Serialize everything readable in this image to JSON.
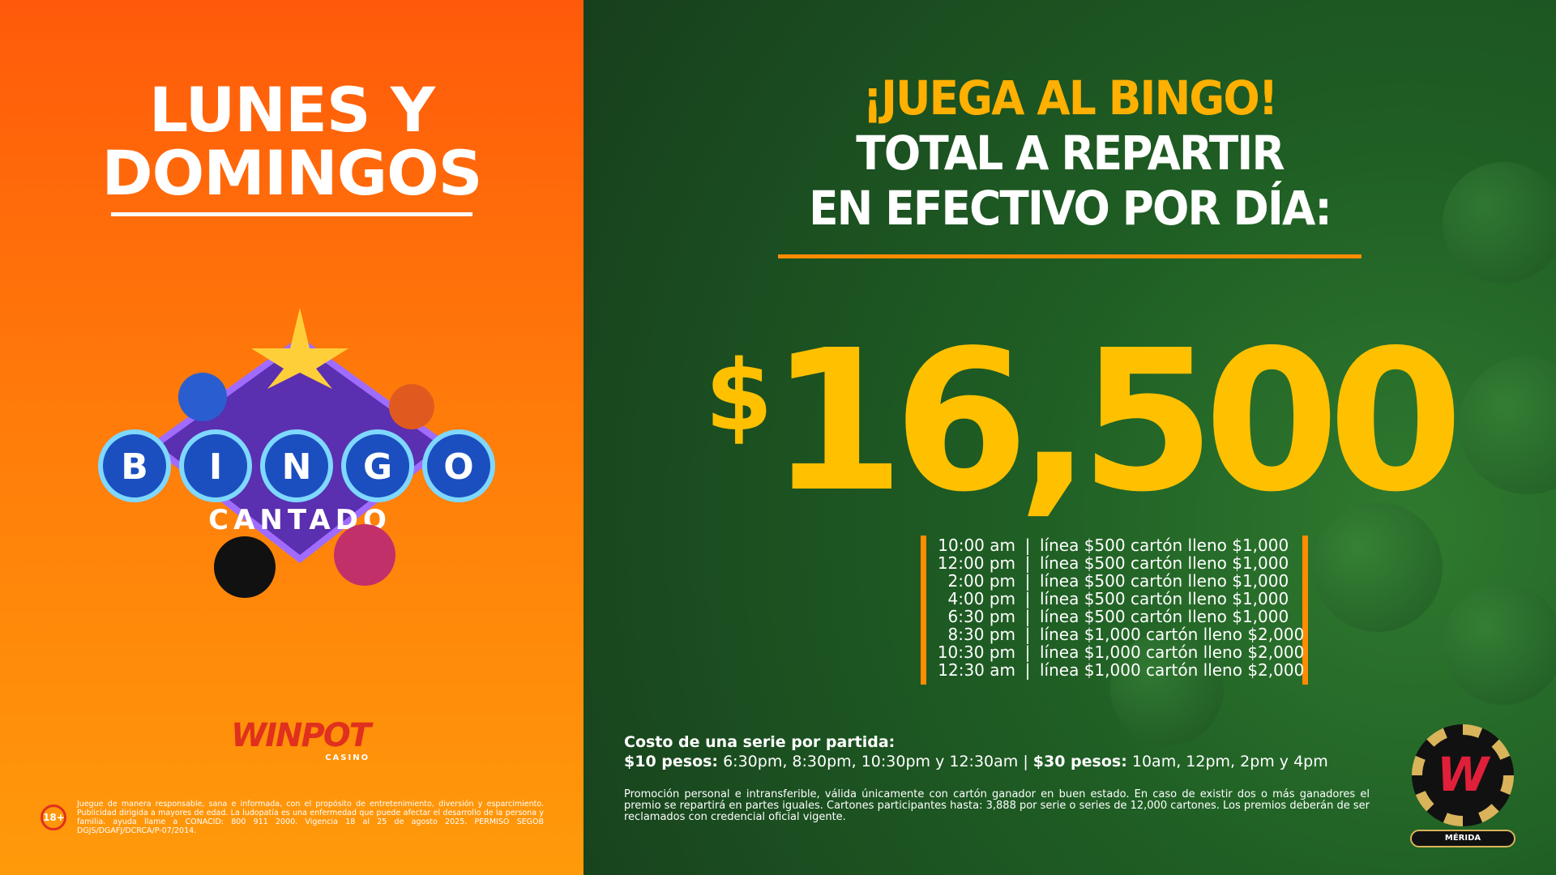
{
  "left": {
    "headline": [
      "LUNES Y",
      "DOMINGOS"
    ],
    "logo_text": {
      "letters": [
        "B",
        "I",
        "N",
        "G",
        "O"
      ],
      "subtitle": "CANTADO"
    },
    "brand": {
      "name": "WINPOT",
      "sub": "CASINO"
    },
    "age_badge": "18+",
    "disclaimer": "Juegue de manera responsable, sana e informada, con el propósito de entretenimiento, diversión y esparcimiento. Publicidad dirigida a mayores de edad. La ludopatía es una enfermedad que puede afectar el desarrollo de la persona y familia. ayuda llame a CONACID: 800 911 2000. Vigencia 18 al 25 de agosto 2025. PERMISO SEGOB DGJS/DGAFJ/DCRCA/P-07/2014."
  },
  "right": {
    "title": "¡JUEGA AL BINGO!",
    "subtitle": [
      "TOTAL A REPARTIR",
      "EN EFECTIVO POR DÍA:"
    ],
    "amount": {
      "currency": "$",
      "value": "16,500"
    },
    "schedule": [
      {
        "time": "10:00 am",
        "prize": "línea $500 cartón lleno $1,000"
      },
      {
        "time": "12:00 pm",
        "prize": "línea $500 cartón lleno $1,000"
      },
      {
        "time": "2:00 pm",
        "prize": "línea $500 cartón lleno $1,000"
      },
      {
        "time": "4:00 pm",
        "prize": "línea $500 cartón lleno $1,000"
      },
      {
        "time": "6:30 pm",
        "prize": "línea $500 cartón lleno $1,000"
      },
      {
        "time": "8:30 pm",
        "prize": "línea $1,000 cartón lleno $2,000"
      },
      {
        "time": "10:30 pm",
        "prize": "línea $1,000 cartón lleno $2,000"
      },
      {
        "time": "12:30 am",
        "prize": "línea $1,000 cartón lleno $2,000"
      }
    ],
    "cost": {
      "heading": "Costo de una serie por partida:",
      "label10": "$10 pesos:",
      "times10": "6:30pm, 8:30pm, 10:30pm y 12:30am",
      "sep": "|",
      "label30": "$30 pesos:",
      "times30": "10am, 12pm, 2pm y 4pm"
    },
    "promo": "Promoción personal e intransferible, válida únicamente con cartón ganador en buen estado. En caso de existir dos o más ganadores el premio se repartirá en partes iguales. Cartones participantes hasta: 3,888 por serie o series de 12,000 cartones. Los premios deberán de ser reclamados con credencial oficial vigente.",
    "badge": {
      "letter": "W",
      "location": "MÉRIDA"
    }
  },
  "colors": {
    "orange": "#ff7a0a",
    "green": "#1f5e24",
    "gold": "#ffc000",
    "accent": "#ff8c00"
  }
}
